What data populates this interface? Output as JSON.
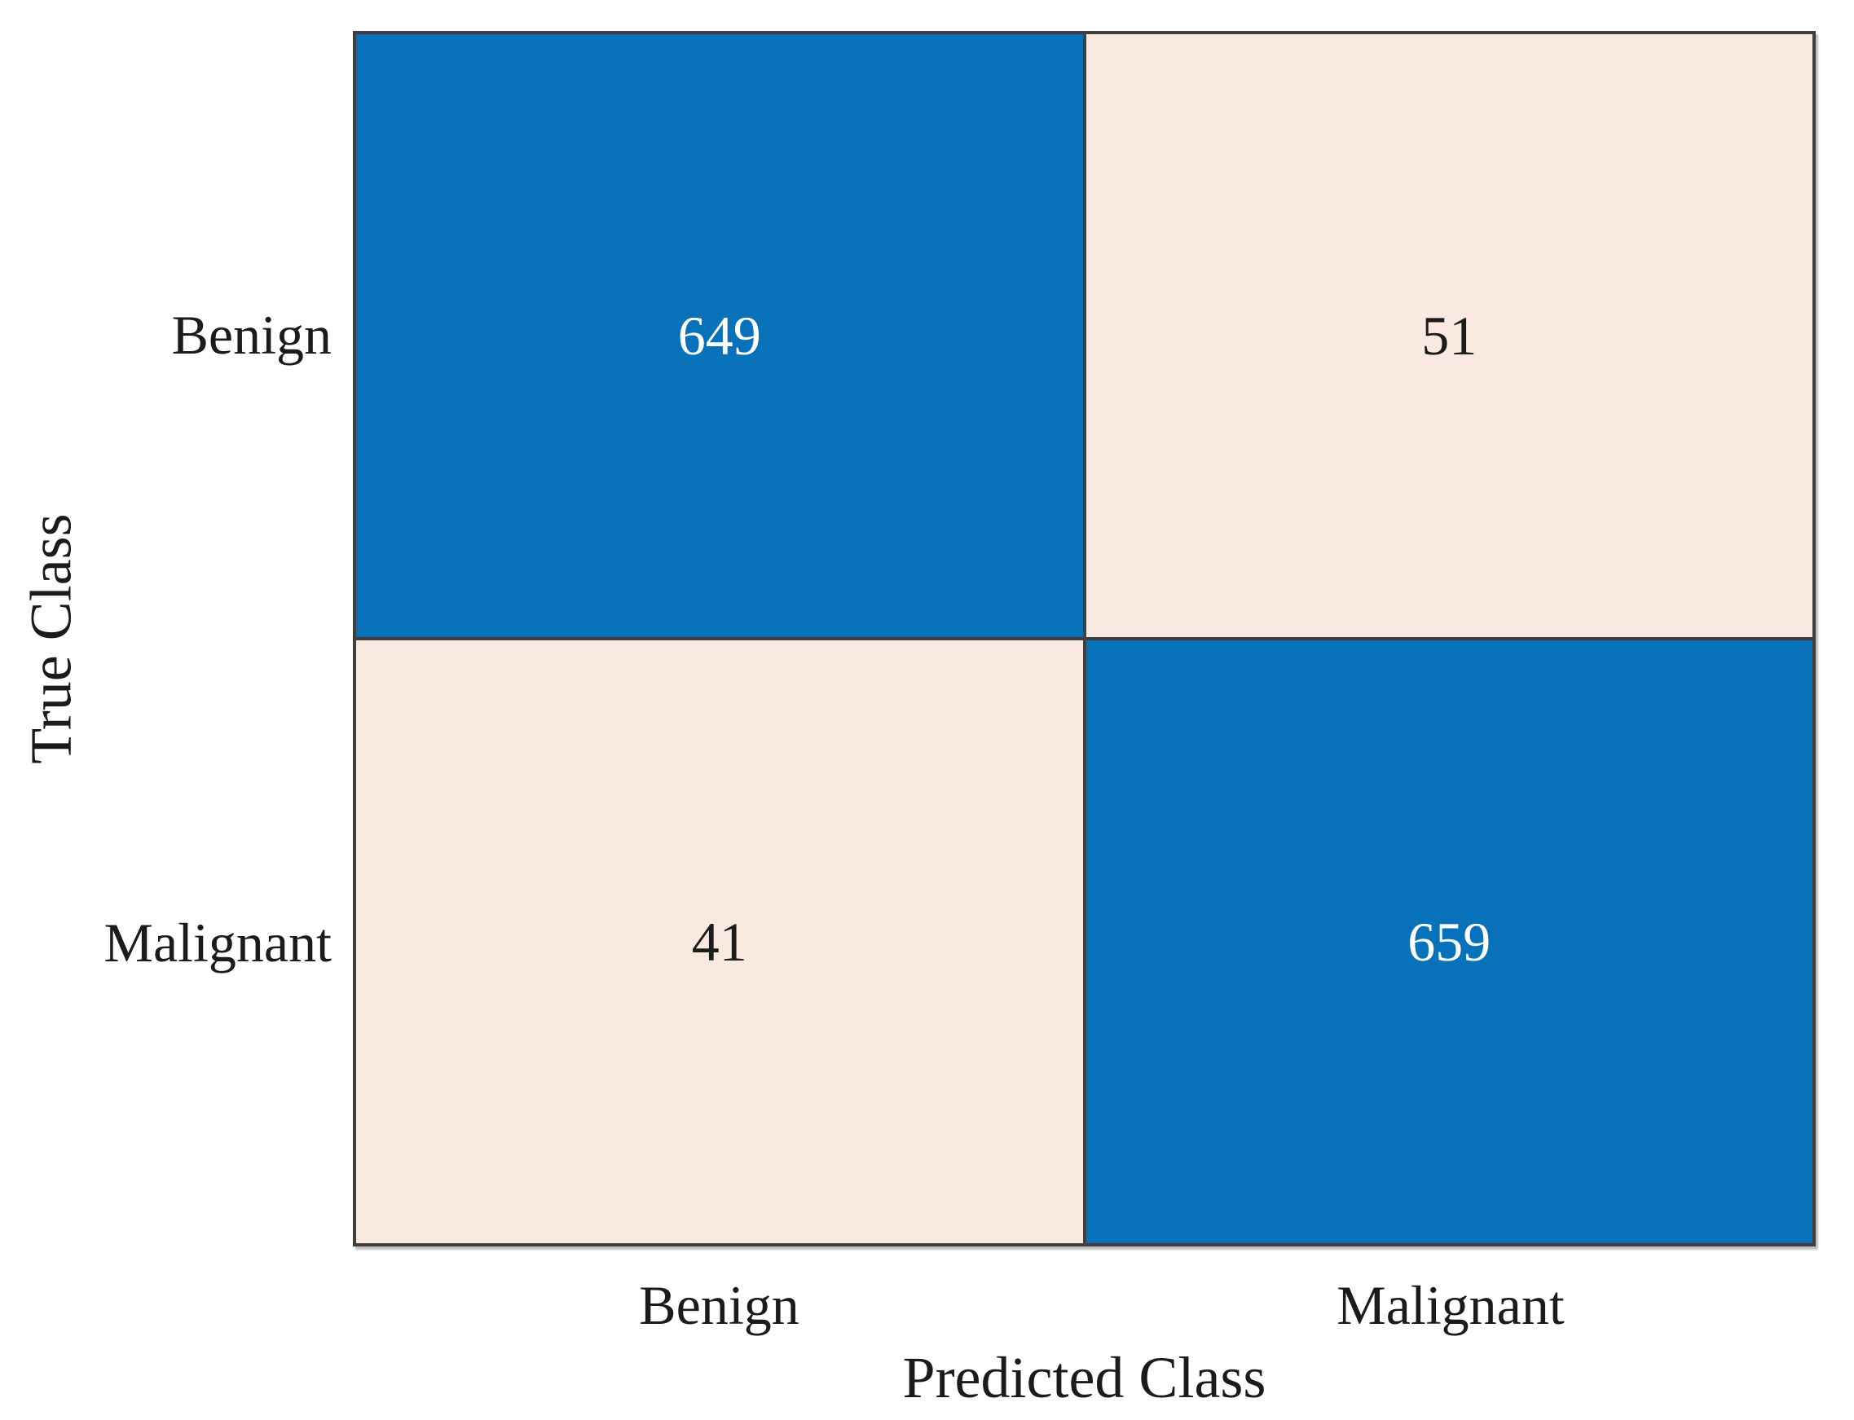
{
  "chart_data": {
    "type": "heatmap",
    "variant": "confusion_matrix",
    "title": "",
    "xlabel": "Predicted Class",
    "ylabel": "True Class",
    "x_categories": [
      "Benign",
      "Malignant"
    ],
    "y_categories": [
      "Benign",
      "Malignant"
    ],
    "values": [
      [
        649,
        51
      ],
      [
        41,
        659
      ]
    ],
    "cells": [
      {
        "true_class": "Benign",
        "predicted_class": "Benign",
        "count": 649,
        "on_diagonal": true
      },
      {
        "true_class": "Benign",
        "predicted_class": "Malignant",
        "count": 51,
        "on_diagonal": false
      },
      {
        "true_class": "Malignant",
        "predicted_class": "Benign",
        "count": 41,
        "on_diagonal": false
      },
      {
        "true_class": "Malignant",
        "predicted_class": "Malignant",
        "count": 659,
        "on_diagonal": true
      }
    ],
    "legend": "none",
    "grid": "on",
    "colors": {
      "diagonal_cell": "#0772BA",
      "off_diagonal_cell": "#FAE9E1",
      "diagonal_text": "#FFFFFF",
      "off_diagonal_text": "#1B1B1B",
      "grid_border": "#3F3F3F",
      "label_text": "#1B1B1B",
      "background": "#FFFFFF"
    }
  }
}
